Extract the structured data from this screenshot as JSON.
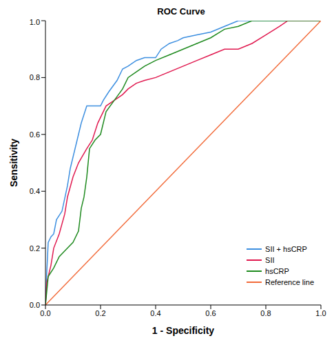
{
  "chart_data": {
    "type": "line",
    "title": "ROC Curve",
    "x_label": "1 - Specificity",
    "y_label": "Sensitivity",
    "xlim": [
      0,
      1
    ],
    "ylim": [
      0,
      1
    ],
    "xticks": [
      {
        "value": 0,
        "label": "0.0"
      },
      0.2,
      0.4,
      0.6,
      0.8,
      {
        "value": 1,
        "label": "1.0"
      }
    ],
    "yticks": [
      {
        "value": 0,
        "label": "0.0"
      },
      0.2,
      0.4,
      0.6,
      0.8,
      {
        "value": 1,
        "label": "1.0"
      }
    ],
    "grid": false,
    "legend": "lower right",
    "series": [
      {
        "name": "SII + hsCRP",
        "color": "#3d8fe0",
        "line_style": "solid",
        "x": [
          0,
          0.005,
          0.01,
          0.02,
          0.03,
          0.04,
          0.06,
          0.08,
          0.09,
          0.1,
          0.12,
          0.13,
          0.15,
          0.2,
          0.21,
          0.23,
          0.26,
          0.28,
          0.3,
          0.33,
          0.36,
          0.4,
          0.42,
          0.45,
          0.48,
          0.5,
          0.55,
          0.6,
          0.65,
          0.7,
          1
        ],
        "values": [
          0,
          0.12,
          0.22,
          0.24,
          0.25,
          0.3,
          0.33,
          0.42,
          0.48,
          0.52,
          0.6,
          0.64,
          0.7,
          0.7,
          0.72,
          0.75,
          0.79,
          0.83,
          0.84,
          0.86,
          0.87,
          0.87,
          0.9,
          0.92,
          0.93,
          0.94,
          0.95,
          0.96,
          0.98,
          1,
          1
        ]
      },
      {
        "name": "SII",
        "color": "#e0194f",
        "line_style": "solid",
        "x": [
          0,
          0.005,
          0.02,
          0.03,
          0.05,
          0.07,
          0.08,
          0.1,
          0.12,
          0.15,
          0.17,
          0.19,
          0.22,
          0.25,
          0.28,
          0.3,
          0.33,
          0.36,
          0.4,
          0.45,
          0.5,
          0.55,
          0.6,
          0.65,
          0.7,
          0.75,
          0.8,
          0.85,
          0.88,
          1
        ],
        "values": [
          0,
          0.08,
          0.14,
          0.2,
          0.25,
          0.32,
          0.38,
          0.45,
          0.5,
          0.55,
          0.58,
          0.64,
          0.7,
          0.72,
          0.74,
          0.76,
          0.78,
          0.79,
          0.8,
          0.82,
          0.84,
          0.86,
          0.88,
          0.9,
          0.9,
          0.92,
          0.95,
          0.98,
          1,
          1
        ]
      },
      {
        "name": "hsCRP",
        "color": "#1f8a1f",
        "line_style": "solid",
        "x": [
          0,
          0.01,
          0.03,
          0.05,
          0.08,
          0.1,
          0.12,
          0.13,
          0.14,
          0.15,
          0.16,
          0.18,
          0.2,
          0.22,
          0.25,
          0.28,
          0.3,
          0.33,
          0.36,
          0.4,
          0.45,
          0.5,
          0.55,
          0.6,
          0.65,
          0.7,
          0.75,
          1
        ],
        "values": [
          0,
          0.1,
          0.13,
          0.17,
          0.2,
          0.22,
          0.26,
          0.34,
          0.38,
          0.45,
          0.55,
          0.58,
          0.6,
          0.68,
          0.72,
          0.76,
          0.8,
          0.82,
          0.84,
          0.86,
          0.88,
          0.9,
          0.92,
          0.94,
          0.97,
          0.98,
          1,
          1
        ]
      },
      {
        "name": "Reference line",
        "color": "#f26b3a",
        "line_style": "solid",
        "x": [
          0,
          1
        ],
        "values": [
          0,
          1
        ]
      }
    ]
  }
}
